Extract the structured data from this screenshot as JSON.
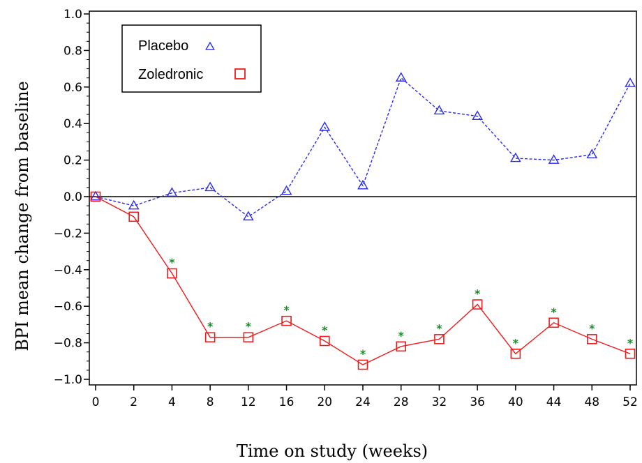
{
  "chart_data": {
    "type": "line",
    "title": "",
    "xlabel": "Time on study (weeks)",
    "ylabel": "BPI mean change from baseline",
    "categories": [
      "0",
      "2",
      "4",
      "8",
      "12",
      "16",
      "20",
      "24",
      "28",
      "32",
      "36",
      "40",
      "44",
      "48",
      "52"
    ],
    "ylim": [
      -1.0,
      1.0
    ],
    "yticks": [
      "-1.0",
      "-0.8",
      "-0.6",
      "-0.4",
      "-0.2",
      "0.0",
      "0.2",
      "0.4",
      "0.6",
      "0.8",
      "1.0"
    ],
    "series": [
      {
        "name": "Placebo",
        "color": "#2a2af0",
        "marker": "triangle",
        "line_style": "dashed",
        "values": [
          0.0,
          -0.05,
          0.02,
          0.05,
          -0.11,
          0.03,
          0.38,
          0.06,
          0.65,
          0.47,
          0.44,
          0.21,
          0.2,
          0.23,
          0.62
        ]
      },
      {
        "name": "Zoledronic",
        "color": "#ee1c1c",
        "marker": "square",
        "line_style": "solid",
        "values": [
          0.0,
          -0.11,
          -0.42,
          -0.77,
          -0.77,
          -0.68,
          -0.79,
          -0.92,
          -0.82,
          -0.78,
          -0.59,
          -0.86,
          -0.69,
          -0.78,
          -0.86
        ]
      }
    ],
    "significance_marker": "*",
    "significance_color": "#1b8a2a",
    "significant_points": [
      "4",
      "8",
      "12",
      "16",
      "20",
      "24",
      "28",
      "32",
      "36",
      "40",
      "44",
      "48",
      "52"
    ],
    "reference_line": 0.0,
    "legend_position": "top-left",
    "grid": false
  }
}
